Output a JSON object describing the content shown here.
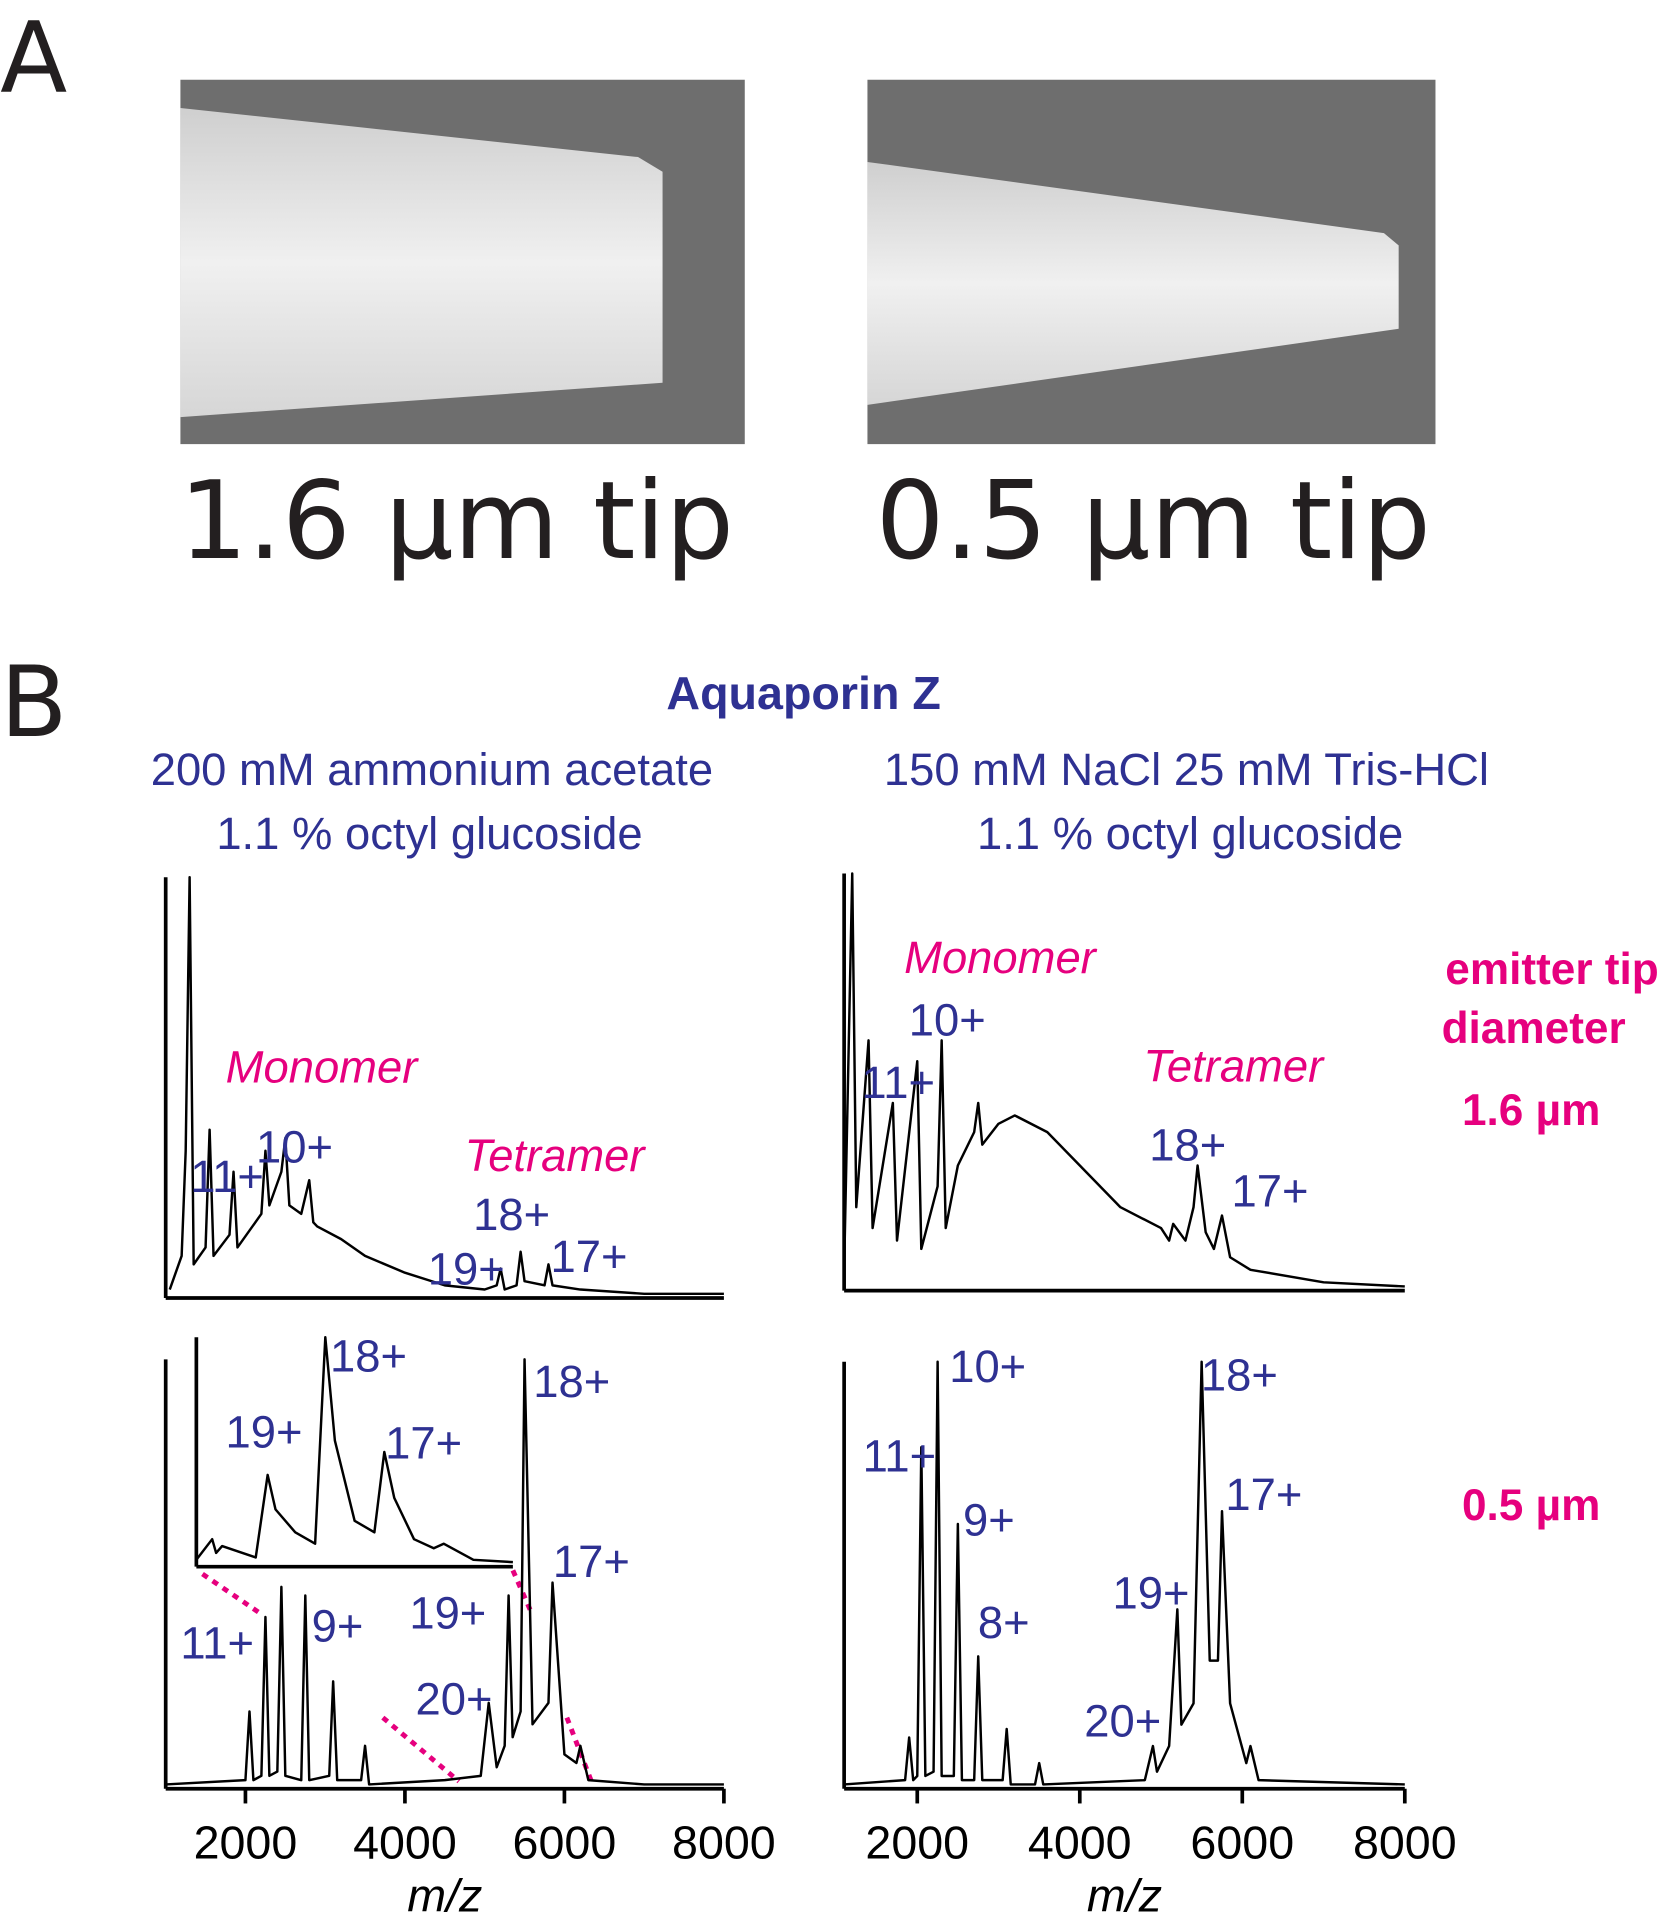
{
  "panel_a": {
    "label": "A",
    "captions": [
      "1.6 µm tip",
      "0.5 µm tip"
    ]
  },
  "panel_b": {
    "label": "B",
    "title": "Aquaporin Z",
    "conditions": [
      [
        "200 mM ammonium acetate",
        "1.1 % octyl glucoside"
      ],
      [
        "150 mM NaCl 25 mM Tris-HCl",
        "1.1 % octyl glucoside"
      ]
    ],
    "row_heading": [
      "emitter tip",
      "diameter"
    ],
    "row_labels": [
      "1.6 µm",
      "0.5 µm"
    ]
  },
  "chart_data": [
    {
      "type": "line",
      "color": "#000000",
      "xlim": [
        1000,
        8000
      ],
      "ylim": [
        0,
        100
      ],
      "x": [
        1050,
        1200,
        1250,
        1300,
        1350,
        1500,
        1550,
        1600,
        1800,
        1850,
        1900,
        2200,
        2250,
        2300,
        2450,
        2500,
        2550,
        2700,
        2800,
        2850,
        2900,
        3200,
        3500,
        4000,
        4500,
        5000,
        5150,
        5200,
        5250,
        5400,
        5450,
        5500,
        5750,
        5800,
        5850,
        6200,
        7000,
        8000
      ],
      "values": [
        2,
        10,
        35,
        100,
        8,
        12,
        40,
        10,
        15,
        30,
        12,
        20,
        35,
        22,
        30,
        38,
        22,
        20,
        28,
        18,
        17,
        14,
        10,
        6,
        3,
        2,
        3,
        7,
        2,
        3,
        11,
        4,
        3,
        8,
        3,
        2,
        1,
        1
      ],
      "annotations": [
        {
          "text": "Monomer",
          "x": 2954,
          "y": 55,
          "color": "#e6007e",
          "font_style": "italic"
        },
        {
          "text": "11+",
          "x": 1769,
          "y": 29,
          "color": "#2e3192",
          "font_style": "normal"
        },
        {
          "text": "10+",
          "x": 2615,
          "y": 36,
          "color": "#2e3192",
          "font_style": "normal"
        },
        {
          "text": "Tetramer",
          "x": 5877,
          "y": 34,
          "color": "#e6007e",
          "font_style": "italic"
        },
        {
          "text": "18+",
          "x": 5338,
          "y": 20,
          "color": "#2e3192",
          "font_style": "normal"
        },
        {
          "text": "19+",
          "x": 4769,
          "y": 7,
          "color": "#2e3192",
          "font_style": "normal"
        },
        {
          "text": "17+",
          "x": 6308,
          "y": 10,
          "color": "#2e3192",
          "font_style": "normal"
        }
      ]
    },
    {
      "type": "line",
      "color": "#000000",
      "xlim": [
        1100,
        8000
      ],
      "ylim": [
        0,
        100
      ],
      "x": [
        1100,
        1200,
        1250,
        1400,
        1450,
        1700,
        1750,
        2000,
        2050,
        2250,
        2300,
        2350,
        2500,
        2700,
        2750,
        2800,
        3000,
        3200,
        3600,
        4000,
        4500,
        5000,
        5100,
        5150,
        5300,
        5400,
        5450,
        5550,
        5650,
        5750,
        5850,
        6100,
        7000,
        8000
      ],
      "values": [
        5,
        100,
        20,
        60,
        15,
        45,
        12,
        55,
        10,
        25,
        60,
        15,
        30,
        38,
        45,
        35,
        40,
        42,
        38,
        30,
        20,
        15,
        12,
        16,
        12,
        20,
        30,
        14,
        10,
        18,
        8,
        5,
        2,
        1
      ],
      "annotations": [
        {
          "text": "Monomer",
          "x": 3018,
          "y": 80,
          "color": "#e6007e",
          "font_style": "italic"
        },
        {
          "text": "10+",
          "x": 2369,
          "y": 65,
          "color": "#2e3192",
          "font_style": "normal"
        },
        {
          "text": "11+",
          "x": 1765,
          "y": 50,
          "color": "#2e3192",
          "font_style": "normal"
        },
        {
          "text": "Tetramer",
          "x": 5889,
          "y": 54,
          "color": "#e6007e",
          "font_style": "italic"
        },
        {
          "text": "18+",
          "x": 5329,
          "y": 35,
          "color": "#2e3192",
          "font_style": "normal"
        },
        {
          "text": "17+",
          "x": 6341,
          "y": 24,
          "color": "#2e3192",
          "font_style": "normal"
        }
      ]
    },
    {
      "type": "line",
      "color": "#000000",
      "xlim": [
        1000,
        8000
      ],
      "ylim": [
        0,
        100
      ],
      "xticks": [
        2000,
        4000,
        6000,
        8000
      ],
      "xlabel": "m/z",
      "x": [
        1000,
        2000,
        2050,
        2100,
        2200,
        2250,
        2300,
        2400,
        2450,
        2500,
        2700,
        2750,
        2800,
        3050,
        3100,
        3150,
        3450,
        3500,
        3550,
        4500,
        4950,
        5050,
        5150,
        5250,
        5300,
        5350,
        5450,
        5500,
        5600,
        5800,
        5850,
        6000,
        6150,
        6200,
        6300,
        7000,
        8000
      ],
      "values": [
        1,
        2,
        18,
        2,
        3,
        40,
        3,
        4,
        47,
        3,
        2,
        45,
        2,
        3,
        25,
        2,
        2,
        10,
        1,
        2,
        3,
        20,
        5,
        10,
        45,
        12,
        18,
        100,
        15,
        20,
        48,
        8,
        6,
        10,
        2,
        1,
        1
      ],
      "annotations": [
        {
          "text": "11+",
          "x": 1646,
          "y": 34,
          "color": "#2e3192",
          "font_style": "normal"
        },
        {
          "text": "9+",
          "x": 3154,
          "y": 38,
          "color": "#2e3192",
          "font_style": "normal"
        },
        {
          "text": "18+",
          "x": 6092,
          "y": 95,
          "color": "#2e3192",
          "font_style": "normal"
        },
        {
          "text": "17+",
          "x": 6338,
          "y": 53,
          "color": "#2e3192",
          "font_style": "normal"
        },
        {
          "text": "19+",
          "x": 4538,
          "y": 41,
          "color": "#2e3192",
          "font_style": "normal"
        },
        {
          "text": "20+",
          "x": 4615,
          "y": 21,
          "color": "#2e3192",
          "font_style": "normal"
        }
      ]
    },
    {
      "type": "line",
      "color": "#000000",
      "xlim": [
        4900,
        6500
      ],
      "ylim": [
        0,
        100
      ],
      "x": [
        4900,
        4980,
        5000,
        5030,
        5200,
        5260,
        5300,
        5400,
        5500,
        5552,
        5600,
        5700,
        5800,
        5850,
        5900,
        6000,
        6100,
        6150,
        6300,
        6500
      ],
      "values": [
        3,
        12,
        6,
        9,
        4,
        40,
        25,
        15,
        10,
        100,
        55,
        20,
        15,
        50,
        30,
        12,
        8,
        10,
        3,
        2
      ],
      "annotations": [
        {
          "text": "19+",
          "x": 5242,
          "y": 59,
          "color": "#2e3192",
          "font_style": "normal"
        },
        {
          "text": "18+",
          "x": 5770,
          "y": 92,
          "color": "#2e3192",
          "font_style": "normal"
        },
        {
          "text": "17+",
          "x": 6049,
          "y": 54,
          "color": "#2e3192",
          "font_style": "normal"
        }
      ]
    },
    {
      "type": "line",
      "color": "#000000",
      "xlim": [
        1100,
        8000
      ],
      "ylim": [
        0,
        100
      ],
      "xticks": [
        2000,
        4000,
        6000,
        8000
      ],
      "xlabel": "m/z",
      "x": [
        1100,
        1850,
        1900,
        1950,
        2000,
        2050,
        2100,
        2200,
        2250,
        2300,
        2450,
        2500,
        2550,
        2700,
        2750,
        2800,
        3050,
        3100,
        3150,
        3450,
        3500,
        3550,
        4800,
        4900,
        4950,
        5100,
        5200,
        5250,
        5400,
        5500,
        5600,
        5700,
        5750,
        5850,
        6050,
        6100,
        6200,
        8000
      ],
      "values": [
        1,
        2,
        12,
        2,
        3,
        80,
        3,
        4,
        100,
        3,
        3,
        62,
        2,
        2,
        31,
        2,
        2,
        14,
        1,
        1,
        6,
        1,
        2,
        10,
        4,
        10,
        42,
        15,
        20,
        100,
        30,
        30,
        65,
        20,
        6,
        10,
        2,
        1
      ],
      "annotations": [
        {
          "text": "10+",
          "x": 2867,
          "y": 99,
          "color": "#2e3192",
          "font_style": "normal"
        },
        {
          "text": "11+",
          "x": 1780,
          "y": 78,
          "color": "#2e3192",
          "font_style": "normal"
        },
        {
          "text": "9+",
          "x": 2882,
          "y": 63,
          "color": "#2e3192",
          "font_style": "normal"
        },
        {
          "text": "8+",
          "x": 3064,
          "y": 39,
          "color": "#2e3192",
          "font_style": "normal"
        },
        {
          "text": "18+",
          "x": 5964,
          "y": 97,
          "color": "#2e3192",
          "font_style": "normal"
        },
        {
          "text": "17+",
          "x": 6266,
          "y": 69,
          "color": "#2e3192",
          "font_style": "normal"
        },
        {
          "text": "19+",
          "x": 4877,
          "y": 46,
          "color": "#2e3192",
          "font_style": "normal"
        },
        {
          "text": "20+",
          "x": 4529,
          "y": 16,
          "color": "#2e3192",
          "font_style": "normal"
        }
      ]
    }
  ]
}
